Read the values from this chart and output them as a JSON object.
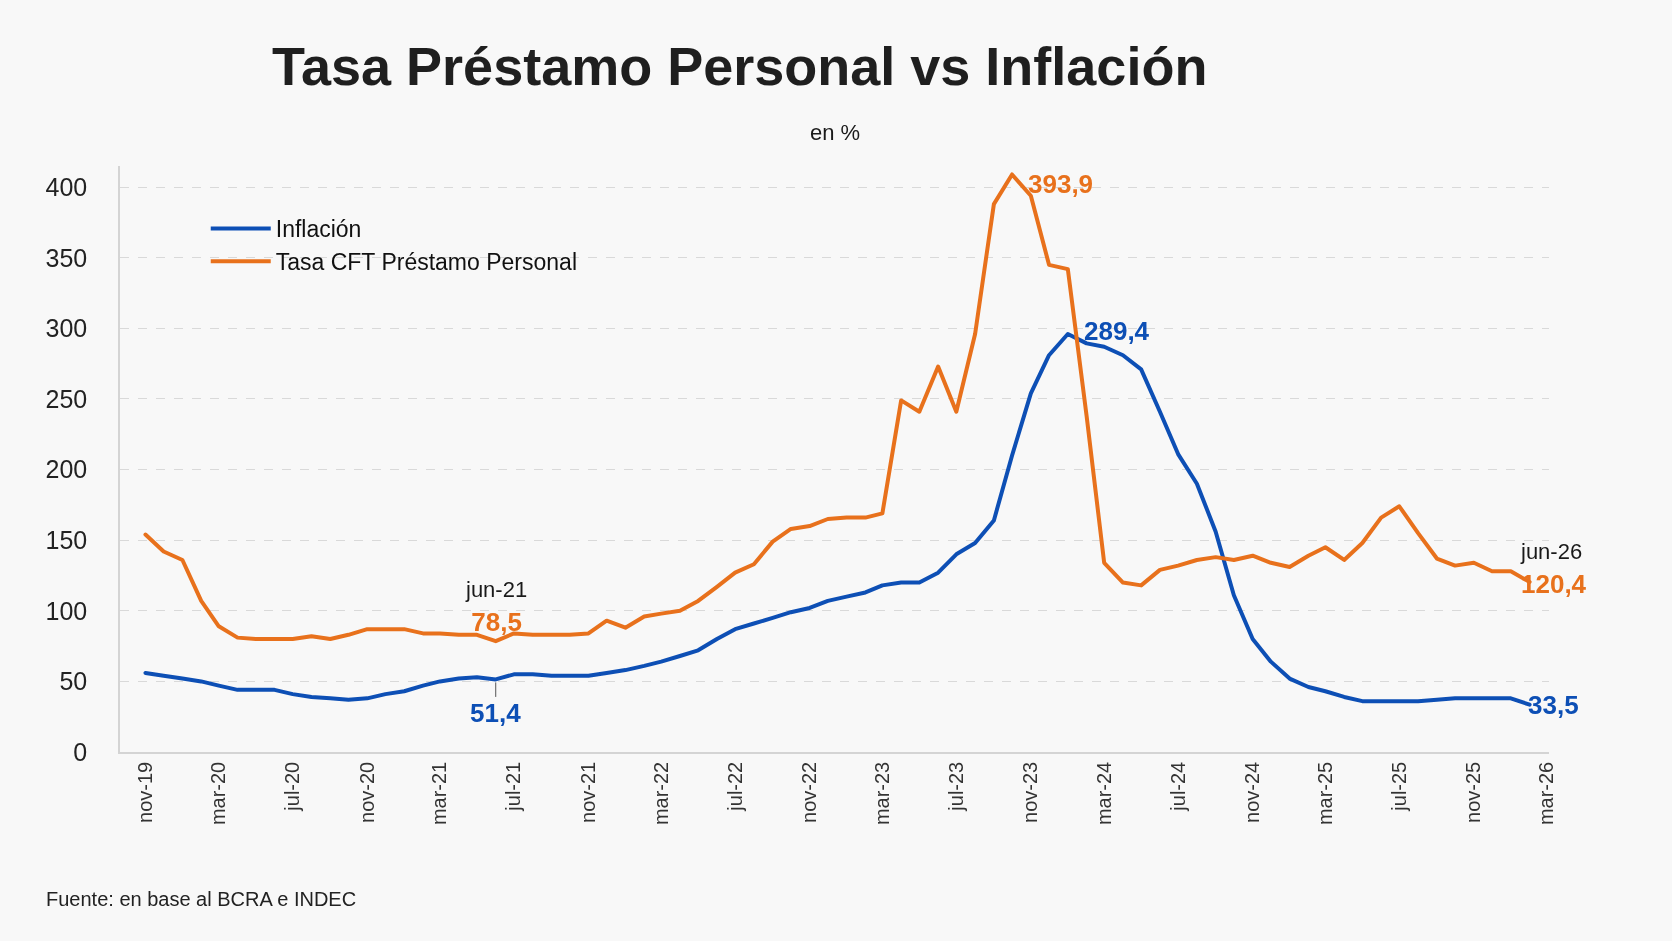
{
  "chart_data": {
    "type": "line",
    "title": "Tasa Préstamo Personal vs Inflación",
    "subtitle": "en %",
    "x": [
      "2019-11",
      "2019-12",
      "2020-01",
      "2020-02",
      "2020-03",
      "2020-04",
      "2020-05",
      "2020-06",
      "2020-07",
      "2020-08",
      "2020-09",
      "2020-10",
      "2020-11",
      "2020-12",
      "2021-01",
      "2021-02",
      "2021-03",
      "2021-04",
      "2021-05",
      "2021-06",
      "2021-07",
      "2021-08",
      "2021-09",
      "2021-10",
      "2021-11",
      "2021-12",
      "2022-01",
      "2022-02",
      "2022-03",
      "2022-04",
      "2022-05",
      "2022-06",
      "2022-07",
      "2022-08",
      "2022-09",
      "2022-10",
      "2022-11",
      "2022-12",
      "2023-01",
      "2023-02",
      "2023-03",
      "2023-04",
      "2023-05",
      "2023-06",
      "2023-07",
      "2023-08",
      "2023-09",
      "2023-10",
      "2023-11",
      "2023-12",
      "2024-01",
      "2024-02",
      "2024-03",
      "2024-04",
      "2024-05",
      "2024-06",
      "2024-07",
      "2024-08",
      "2024-09",
      "2024-10",
      "2024-11",
      "2024-12",
      "2025-01",
      "2025-02",
      "2025-03",
      "2025-04",
      "2025-05",
      "2025-06",
      "2025-07",
      "2025-08",
      "2025-09",
      "2025-10",
      "2025-11",
      "2025-12",
      "2026-01",
      "2026-02"
    ],
    "series": [
      {
        "name": "Inflación",
        "color": "#0d4fb5",
        "values": [
          56,
          54,
          52,
          50,
          47,
          44,
          44,
          44,
          41,
          39,
          38,
          37,
          38,
          41,
          43,
          47,
          50,
          52,
          53,
          51.4,
          55,
          55,
          54,
          54,
          54,
          56,
          58,
          61,
          64,
          68,
          72,
          80,
          87,
          91,
          95,
          99,
          102,
          107,
          110,
          113,
          118,
          120,
          120,
          127,
          140,
          148,
          164,
          210,
          254,
          281,
          296,
          289.4,
          287,
          281,
          271,
          241,
          211,
          190,
          156,
          111,
          80,
          64,
          52,
          46,
          43,
          39,
          36,
          36,
          36,
          36,
          37,
          38,
          38,
          38,
          38,
          33.5
        ]
      },
      {
        "name": "Tasa CFT Préstamo Personal",
        "color": "#e8711c",
        "values": [
          154,
          142,
          136,
          107,
          89,
          81,
          80,
          80,
          80,
          82,
          80,
          83,
          87,
          87,
          87,
          84,
          84,
          83,
          83,
          78.5,
          84,
          83,
          83,
          83,
          84,
          93,
          88,
          96,
          98,
          100,
          107,
          117,
          127,
          133,
          149,
          158,
          160,
          165,
          166,
          166,
          169,
          249,
          241,
          273,
          241,
          296,
          388,
          409,
          393.9,
          345,
          342,
          238,
          134,
          120,
          118,
          129,
          132,
          136,
          138,
          136,
          139,
          134,
          131,
          139,
          145,
          136,
          148,
          166,
          174,
          155,
          137,
          132,
          134,
          128,
          128,
          120.4
        ]
      }
    ],
    "xlim": [
      "2019-09-20",
      "2026-03-05"
    ],
    "xticks": [
      {
        "value": "2019-11",
        "label": "nov-19"
      },
      {
        "value": "2020-03",
        "label": "mar-20"
      },
      {
        "value": "2020-07",
        "label": "jul-20"
      },
      {
        "value": "2020-11",
        "label": "nov-20"
      },
      {
        "value": "2021-03",
        "label": "mar-21"
      },
      {
        "value": "2021-07",
        "label": "jul-21"
      },
      {
        "value": "2021-11",
        "label": "nov-21"
      },
      {
        "value": "2022-03",
        "label": "mar-22"
      },
      {
        "value": "2022-07",
        "label": "jul-22"
      },
      {
        "value": "2022-11",
        "label": "nov-22"
      },
      {
        "value": "2023-03",
        "label": "mar-23"
      },
      {
        "value": "2023-07",
        "label": "jul-23"
      },
      {
        "value": "2023-11",
        "label": "nov-23"
      },
      {
        "value": "2024-03",
        "label": "mar-24"
      },
      {
        "value": "2024-07",
        "label": "jul-24"
      },
      {
        "value": "2024-11",
        "label": "nov-24"
      },
      {
        "value": "2025-03",
        "label": "mar-25"
      },
      {
        "value": "2025-07",
        "label": "jul-25"
      },
      {
        "value": "2025-11",
        "label": "nov-25"
      },
      {
        "value": "2026-03",
        "label": "mar-26"
      }
    ],
    "ylim": [
      0,
      415
    ],
    "yticks": [
      0,
      50,
      100,
      150,
      200,
      250,
      300,
      350,
      400
    ],
    "grid": "y",
    "legend": "top left",
    "marker": "none",
    "line_style": "solid",
    "annotations": [
      {
        "text": "393,9",
        "x": "2023-11",
        "y": 393.9
      },
      {
        "text": "289,4",
        "x": "2024-02",
        "y": 289.4
      },
      {
        "text": "jun-21\n78,5",
        "x": "2021-06",
        "y": 78.5
      },
      {
        "text": "51,4",
        "x": "2021-06",
        "y": 51.4
      },
      {
        "text": "jun-26\n120,4",
        "x": "2026-02",
        "y": 120.4
      },
      {
        "text": "33,5",
        "x": "2026-02",
        "y": 33.5
      },
      "Fuente: en base al BCRA e INDEC"
    ]
  }
}
